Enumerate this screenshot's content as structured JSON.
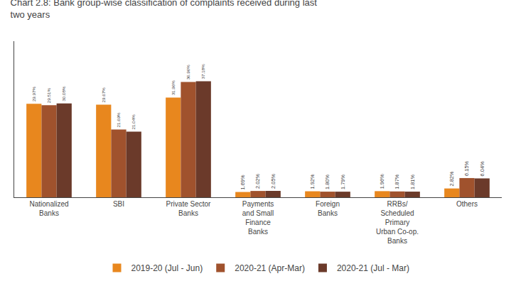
{
  "chart_data": {
    "type": "bar",
    "title": "Chart 2.8: Bank group-wise classification of complaints received during last\ntwo years",
    "categories": [
      "Nationalized\nBanks",
      "SBI",
      "Private Sector\nBanks",
      "Payments\nand Small\nFinance\nBanks",
      "Foreign\nBanks",
      "RRBs/\nScheduled\nPrimary\nUrban Co-op.\nBanks",
      "Others"
    ],
    "series": [
      {
        "name": "2019-20 (Jul - Jun)",
        "color": "#E8871E",
        "values": [
          29.97,
          29.67,
          31.96,
          1.69,
          1.92,
          1.96,
          2.82
        ],
        "value_labels": [
          "29.97%",
          "29.67%",
          "31.96%",
          "1.69%",
          "1.92%",
          "1.96%",
          "2.82%"
        ]
      },
      {
        "name": "2020-21 (Apr-Mar)",
        "color": "#A0522D",
        "values": [
          29.51,
          21.69,
          36.96,
          2.02,
          1.8,
          1.87,
          6.15
        ],
        "value_labels": [
          "29.51%",
          "21.69%",
          "36.96%",
          "2.02%",
          "1.80%",
          "1.87%",
          "6.15%"
        ]
      },
      {
        "name": "2020-21 (Jul - Mar)",
        "color": "#6B3A2A",
        "values": [
          30.08,
          21.04,
          37.18,
          2.05,
          1.79,
          1.81,
          6.04
        ],
        "value_labels": [
          "30.08%",
          "21.04%",
          "37.18%",
          "2.05%",
          "1.79%",
          "1.81%",
          "6.04%"
        ]
      }
    ],
    "ylim": [
      0,
      50
    ],
    "grid": false,
    "legend": "bottom",
    "data_labels": true,
    "tick_labels": "x"
  }
}
